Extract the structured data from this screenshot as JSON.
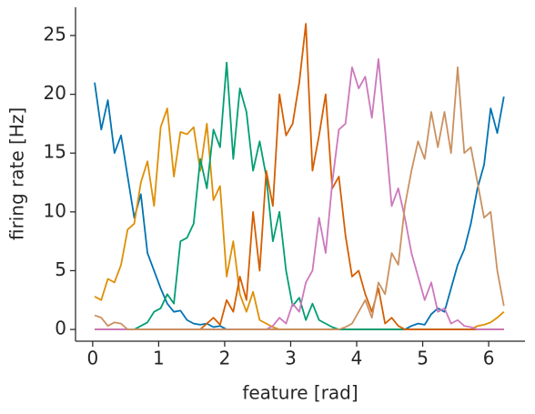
{
  "chart_data": {
    "type": "line",
    "xlabel": "feature [rad]",
    "ylabel": "firing rate [Hz]",
    "x": [
      0.03,
      0.13,
      0.23,
      0.33,
      0.43,
      0.53,
      0.63,
      0.73,
      0.83,
      0.93,
      1.03,
      1.13,
      1.23,
      1.33,
      1.43,
      1.53,
      1.63,
      1.73,
      1.83,
      1.93,
      2.03,
      2.13,
      2.23,
      2.33,
      2.43,
      2.53,
      2.63,
      2.73,
      2.83,
      2.93,
      3.03,
      3.13,
      3.23,
      3.33,
      3.43,
      3.53,
      3.63,
      3.73,
      3.83,
      3.93,
      4.03,
      4.13,
      4.23,
      4.33,
      4.43,
      4.53,
      4.63,
      4.73,
      4.83,
      4.93,
      5.03,
      5.13,
      5.23,
      5.33,
      5.43,
      5.53,
      5.63,
      5.73,
      5.83,
      5.93,
      6.03,
      6.13,
      6.23
    ],
    "series": [
      {
        "color": "#0173b2",
        "values": [
          21,
          17,
          19.5,
          15,
          16.5,
          13,
          9.5,
          11.5,
          6.5,
          5,
          3.5,
          2.2,
          1.5,
          1.6,
          0.8,
          0.5,
          0.4,
          0.5,
          0.2,
          0.3,
          0,
          0,
          0,
          0,
          0,
          0,
          0,
          0,
          0,
          0,
          0,
          0,
          0,
          0,
          0,
          0,
          0,
          0,
          0,
          0,
          0,
          0,
          0,
          0,
          0,
          0,
          0,
          0,
          0.3,
          0.5,
          0.4,
          1.3,
          1.8,
          1.5,
          3.5,
          5.5,
          6.8,
          9,
          12,
          14,
          18.8,
          16.7,
          19.8
        ]
      },
      {
        "color": "#de8f05",
        "values": [
          2.8,
          2.5,
          4.3,
          4,
          5.5,
          8.5,
          9,
          12.5,
          14.3,
          10.5,
          17.2,
          18.8,
          13,
          16.8,
          16.6,
          17.2,
          13.5,
          17.5,
          11,
          12.2,
          4.5,
          7.5,
          3,
          1.5,
          3.2,
          0.8,
          0.5,
          0.2,
          0,
          0,
          0,
          0,
          0,
          0,
          0,
          0,
          0,
          0,
          0,
          0,
          0,
          0,
          0,
          0,
          0,
          0,
          0,
          0,
          0,
          0,
          0,
          0,
          0,
          0,
          0,
          0,
          0,
          0,
          0.3,
          0.4,
          0.6,
          1,
          1.5
        ]
      },
      {
        "color": "#029e73",
        "values": [
          0,
          0,
          0,
          0,
          0,
          0,
          0,
          0.3,
          0.6,
          1.5,
          1.8,
          3,
          2.2,
          7.5,
          7.8,
          9,
          14.5,
          12,
          17,
          15.5,
          22.7,
          14.5,
          20.5,
          18.5,
          13.5,
          16,
          13,
          7.5,
          10,
          5,
          2,
          2.7,
          0.8,
          2.2,
          0.8,
          0.5,
          0.2,
          0,
          0,
          0,
          0,
          0,
          0,
          0,
          0,
          0,
          0,
          0,
          0,
          0,
          0,
          0,
          0,
          0,
          0,
          0,
          0,
          0,
          0,
          0,
          0,
          0,
          0
        ]
      },
      {
        "color": "#d55e00",
        "values": [
          0,
          0,
          0,
          0,
          0,
          0,
          0,
          0,
          0,
          0,
          0,
          0,
          0,
          0,
          0,
          0,
          0,
          0.5,
          1,
          0.4,
          2.5,
          1.5,
          4.5,
          2.5,
          10,
          5,
          13.5,
          10.5,
          20,
          16.5,
          17.5,
          21,
          26,
          13.5,
          16.5,
          20,
          12,
          13,
          8,
          4.5,
          5,
          3,
          1.5,
          3.5,
          0.5,
          1,
          0.3,
          0,
          0,
          0,
          0,
          0,
          0,
          0,
          0,
          0,
          0,
          0,
          0,
          0,
          0,
          0,
          0
        ]
      },
      {
        "color": "#cc78bc",
        "values": [
          0,
          0,
          0,
          0,
          0,
          0,
          0,
          0,
          0,
          0,
          0,
          0,
          0,
          0,
          0,
          0,
          0,
          0,
          0,
          0,
          0,
          0,
          0,
          0,
          0,
          0,
          0,
          0.3,
          1,
          0.5,
          2.2,
          1.5,
          4,
          5,
          9.5,
          6.5,
          12.5,
          17,
          17.5,
          22.3,
          20.5,
          21.5,
          18,
          23,
          17,
          10.5,
          12,
          9.5,
          6.5,
          4.5,
          2.5,
          4,
          1.5,
          1.8,
          0.5,
          0.8,
          0.3,
          0.2,
          0,
          0,
          0,
          0,
          0
        ]
      },
      {
        "color": "#ca9161",
        "values": [
          1.2,
          1,
          0.3,
          0.6,
          0.5,
          0,
          0,
          0,
          0,
          0,
          0,
          0,
          0,
          0,
          0,
          0,
          0,
          0,
          0,
          0,
          0,
          0,
          0,
          0,
          0,
          0,
          0,
          0,
          0,
          0,
          0,
          0,
          0,
          0,
          0,
          0,
          0,
          0,
          0.2,
          0.5,
          1.5,
          2.5,
          1,
          4,
          3,
          6.5,
          5.5,
          10.5,
          13.5,
          16,
          14.5,
          18.5,
          15.5,
          18.5,
          15,
          22.3,
          15,
          15.5,
          12.5,
          9.5,
          10,
          5,
          2
        ]
      }
    ],
    "xlim": [
      -0.26,
      6.55
    ],
    "ylim": [
      -1,
      27.4
    ],
    "xticks": [
      0,
      1,
      2,
      3,
      4,
      5,
      6
    ],
    "yticks": [
      0,
      5,
      10,
      15,
      20,
      25
    ]
  }
}
